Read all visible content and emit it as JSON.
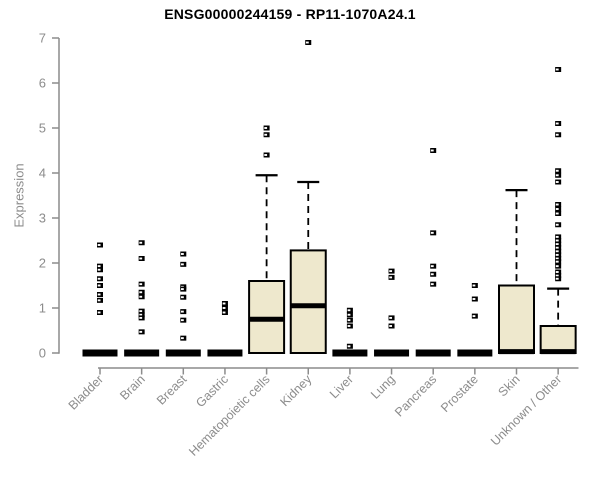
{
  "title": "ENSG00000244159 - RP11-1070A24.1",
  "chart_data": {
    "type": "boxplot",
    "title": "ENSG00000244159 - RP11-1070A24.1",
    "xlabel": "",
    "ylabel": "Expression",
    "ylim": [
      0,
      7
    ],
    "yticks": [
      0,
      1,
      2,
      3,
      4,
      5,
      6,
      7
    ],
    "grid": false,
    "legend": "none",
    "x_label_rotation_deg": 45,
    "categories": [
      "Bladder",
      "Brain",
      "Breast",
      "Gastric",
      "Hematopoietic cells",
      "Kidney",
      "Liver",
      "Lung",
      "Pancreas",
      "Prostate",
      "Skin",
      "Unknown / Other"
    ],
    "boxes": [
      {
        "category": "Bladder",
        "q1": 0,
        "median": 0,
        "q3": 0,
        "whisker_low": 0,
        "whisker_high": 0,
        "outliers": [
          2.4,
          1.93,
          1.85,
          1.65,
          1.5,
          1.3,
          1.17,
          0.9
        ]
      },
      {
        "category": "Brain",
        "q1": 0,
        "median": 0,
        "q3": 0,
        "whisker_low": 0,
        "whisker_high": 0,
        "outliers": [
          2.45,
          2.1,
          1.53,
          1.35,
          1.25,
          0.93,
          0.85,
          0.78,
          0.47
        ]
      },
      {
        "category": "Breast",
        "q1": 0,
        "median": 0,
        "q3": 0,
        "whisker_low": 0,
        "whisker_high": 0,
        "outliers": [
          2.2,
          1.97,
          1.47,
          1.42,
          1.24,
          0.92,
          0.73,
          0.33
        ]
      },
      {
        "category": "Gastric",
        "q1": 0,
        "median": 0,
        "q3": 0,
        "whisker_low": 0,
        "whisker_high": 0,
        "outliers": [
          1.1,
          1.0,
          0.9
        ]
      },
      {
        "category": "Hematopoietic cells",
        "q1": 0,
        "median": 0.75,
        "q3": 1.6,
        "whisker_low": 0,
        "whisker_high": 3.95,
        "outliers": [
          5.0,
          4.85,
          4.4
        ]
      },
      {
        "category": "Kidney",
        "q1": 0,
        "median": 1.05,
        "q3": 2.28,
        "whisker_low": 0,
        "whisker_high": 3.8,
        "outliers": [
          6.9
        ]
      },
      {
        "category": "Liver",
        "q1": 0,
        "median": 0,
        "q3": 0,
        "whisker_low": 0,
        "whisker_high": 0,
        "outliers": [
          0.95,
          0.85,
          0.73,
          0.6,
          0.15
        ]
      },
      {
        "category": "Lung",
        "q1": 0,
        "median": 0,
        "q3": 0,
        "whisker_low": 0,
        "whisker_high": 0,
        "outliers": [
          1.82,
          1.68,
          0.78,
          0.6
        ]
      },
      {
        "category": "Pancreas",
        "q1": 0,
        "median": 0,
        "q3": 0,
        "whisker_low": 0,
        "whisker_high": 0,
        "outliers": [
          4.5,
          2.67,
          1.93,
          1.75,
          1.53
        ]
      },
      {
        "category": "Prostate",
        "q1": 0,
        "median": 0,
        "q3": 0,
        "whisker_low": 0,
        "whisker_high": 0,
        "outliers": [
          1.5,
          1.2,
          0.82
        ]
      },
      {
        "category": "Skin",
        "q1": 0,
        "median": 0.03,
        "q3": 1.5,
        "whisker_low": 0,
        "whisker_high": 3.62,
        "outliers": []
      },
      {
        "category": "Unknown / Other",
        "q1": 0,
        "median": 0.03,
        "q3": 0.6,
        "whisker_low": 0,
        "whisker_high": 1.43,
        "outliers": [
          6.3,
          5.1,
          4.85,
          4.05,
          3.95,
          3.8,
          3.3,
          3.2,
          3.1,
          2.85,
          2.58,
          2.5,
          2.42,
          2.34,
          2.26,
          2.18,
          2.1,
          2.03,
          1.93,
          1.8,
          1.72,
          1.65
        ]
      }
    ]
  },
  "colors": {
    "box_fill": "#EEE8CD",
    "box_stroke": "#000000",
    "median": "#000000",
    "outlier": "#000000",
    "axis": "#8C8C8C",
    "tick_label": "#8C8C8C",
    "title": "#000000",
    "background": "#FFFFFF"
  }
}
